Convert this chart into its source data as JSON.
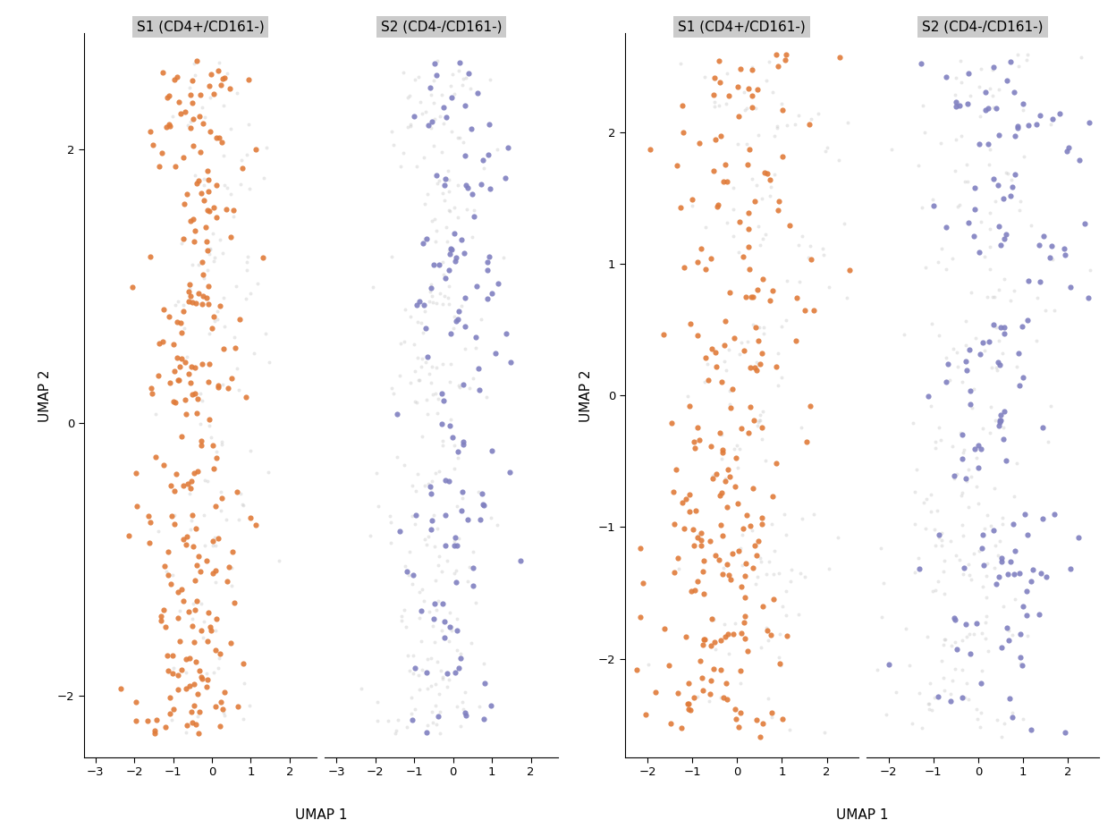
{
  "panel_labels_left": [
    "S1 (CD4+/CD161-)",
    "S2 (CD4-/CD161-)"
  ],
  "panel_labels_right": [
    "S1 (CD4+/CD161-)",
    "S2 (CD4-/CD161-)"
  ],
  "xlabel": "UMAP 1",
  "ylabel": "UMAP 2",
  "s1_color": "#E07B39",
  "s2_color": "#8080C0",
  "bg_color": "#CCCCCC",
  "point_size_fg": 20,
  "point_size_bg": 8,
  "fg_alpha": 0.9,
  "bg_alpha": 0.45,
  "left_xlim": [
    -3.3,
    2.7
  ],
  "left_ylim": [
    -2.45,
    2.85
  ],
  "right_xlim": [
    -2.5,
    2.7
  ],
  "right_ylim": [
    -2.75,
    2.75
  ],
  "strip_color": "#CBCBCB",
  "title_fontsize": 11,
  "axis_fontsize": 11,
  "tick_fontsize": 9.5,
  "left_xticks": [
    -3,
    -2,
    -1,
    0,
    1,
    2
  ],
  "left_yticks": [
    -2,
    0,
    2
  ],
  "right_xticks": [
    -2,
    -1,
    0,
    1,
    2
  ],
  "right_yticks": [
    -2,
    -1,
    0,
    1,
    2
  ]
}
